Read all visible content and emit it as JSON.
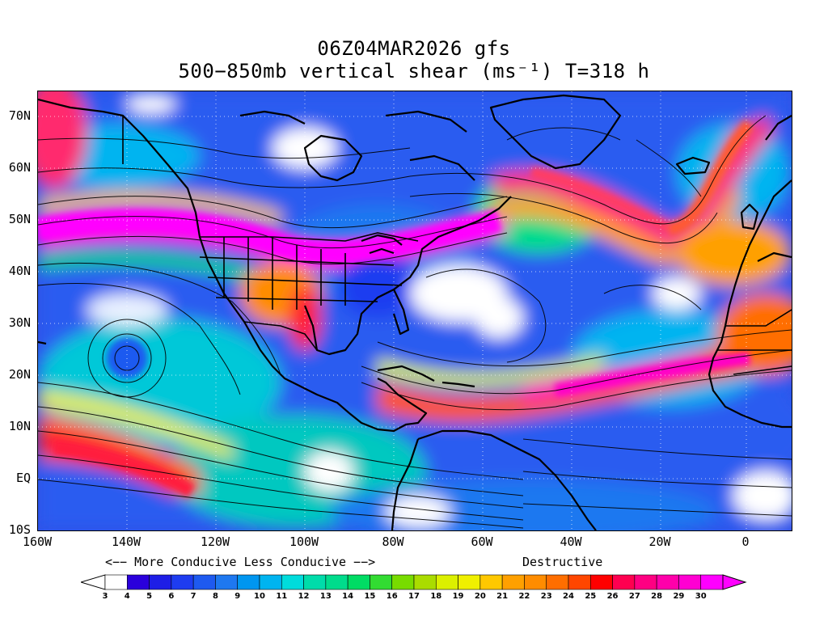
{
  "title_line1": "06Z04MAR2026 gfs",
  "title_line2": "500−850mb vertical shear (ms⁻¹) T=318 h",
  "lat_labels": [
    "70N",
    "60N",
    "50N",
    "40N",
    "30N",
    "20N",
    "10N",
    "EQ",
    "10S"
  ],
  "lon_labels": [
    "160W",
    "140W",
    "120W",
    "100W",
    "80W",
    "60W",
    "40W",
    "20W",
    "0"
  ],
  "legend": {
    "more_less": "<−− More Conducive   Less Conducive −−>",
    "destructive": "Destructive"
  },
  "colorbar": {
    "labels": [
      "3",
      "4",
      "5",
      "6",
      "7",
      "8",
      "9",
      "10",
      "11",
      "12",
      "13",
      "14",
      "15",
      "16",
      "17",
      "18",
      "19",
      "20",
      "21",
      "22",
      "23",
      "24",
      "25",
      "26",
      "27",
      "28",
      "29",
      "30"
    ],
    "colors": [
      "#ffffff",
      "#2a00dc",
      "#1e1ee6",
      "#1e3cf0",
      "#1e5af0",
      "#1e78f0",
      "#0096f0",
      "#00b4f0",
      "#00dcdc",
      "#00dcaa",
      "#00dc8c",
      "#00dc64",
      "#32dc32",
      "#78dc00",
      "#aadc00",
      "#dcf000",
      "#f0f000",
      "#ffc800",
      "#ffa000",
      "#ff8c00",
      "#ff6e00",
      "#ff4600",
      "#ff0000",
      "#ff0050",
      "#ff0082",
      "#ff00aa",
      "#ff00d2",
      "#ff00ff"
    ]
  },
  "map": {
    "domain": "Atlantic / Americas",
    "lon_range": [
      -160,
      10
    ],
    "lat_range": [
      -10,
      75
    ],
    "field": "500-850mb vertical shear",
    "units": "m/s"
  }
}
